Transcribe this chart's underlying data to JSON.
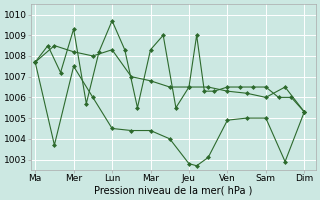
{
  "background_color": "#cce8e2",
  "grid_color": "#ffffff",
  "line_color": "#2d6a2d",
  "marker_color": "#2d6a2d",
  "xlabel": "Pression niveau de la mer( hPa )",
  "xlabel_fontsize": 7,
  "tick_fontsize": 6.5,
  "ylim": [
    1002.5,
    1010.5
  ],
  "yticks": [
    1003,
    1004,
    1005,
    1006,
    1007,
    1008,
    1009,
    1010
  ],
  "x_labels": [
    "Ma",
    "Mer",
    "Lun",
    "Mar",
    "Jeu",
    "Ven",
    "Sam",
    "Dim"
  ],
  "series1_x": [
    0.0,
    0.5,
    1.0,
    1.5,
    2.0,
    2.5,
    3.0,
    3.5,
    4.0,
    4.5,
    5.0,
    5.5,
    6.0,
    6.5,
    7.0
  ],
  "series1_y": [
    1007.7,
    1008.5,
    1008.2,
    1008.0,
    1008.3,
    1007.0,
    1006.8,
    1006.5,
    1006.5,
    1006.5,
    1006.3,
    1006.2,
    1006.0,
    1006.5,
    1005.3
  ],
  "series2_x": [
    0.0,
    0.33,
    0.66,
    1.0,
    1.33,
    1.66,
    2.0,
    2.33,
    2.66,
    3.0,
    3.33,
    3.66,
    4.0,
    4.2,
    4.4,
    4.66,
    5.0,
    5.33,
    5.66,
    6.0,
    6.33,
    6.66,
    7.0
  ],
  "series2_y": [
    1007.7,
    1008.5,
    1007.2,
    1009.3,
    1005.7,
    1008.2,
    1009.7,
    1008.3,
    1005.5,
    1008.3,
    1009.0,
    1005.5,
    1006.5,
    1009.0,
    1006.3,
    1006.3,
    1006.5,
    1006.5,
    1006.5,
    1006.5,
    1006.0,
    1006.0,
    1005.3
  ],
  "series3_x": [
    0.0,
    0.5,
    1.0,
    1.5,
    2.0,
    2.5,
    3.0,
    3.5,
    4.0,
    4.2,
    4.5,
    5.0,
    5.5,
    6.0,
    6.5,
    7.0
  ],
  "series3_y": [
    1007.7,
    1003.7,
    1007.5,
    1006.0,
    1004.5,
    1004.4,
    1004.4,
    1004.0,
    1002.8,
    1002.7,
    1003.1,
    1004.9,
    1005.0,
    1005.0,
    1002.9,
    1005.3
  ]
}
